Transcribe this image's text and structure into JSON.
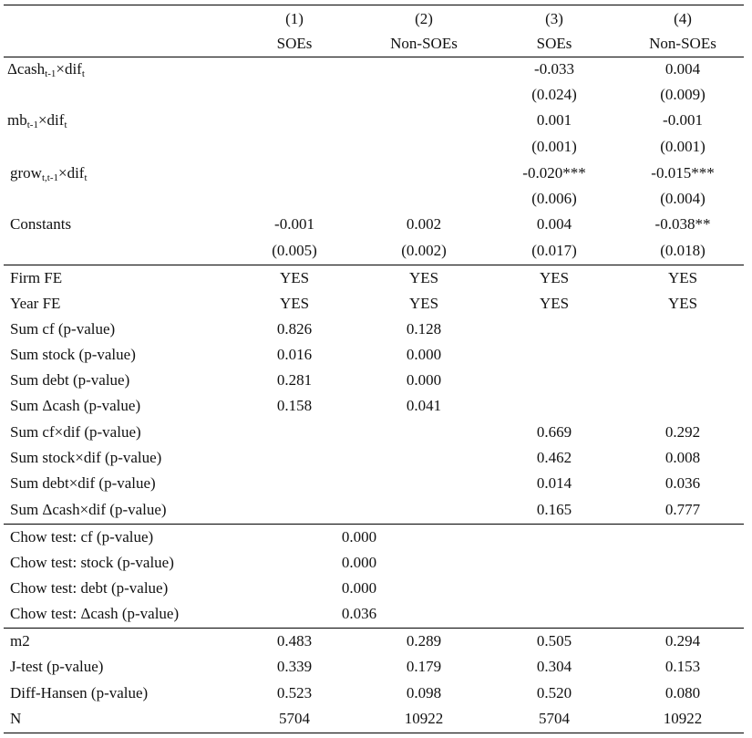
{
  "header": {
    "numbers": [
      "(1)",
      "(2)",
      "(3)",
      "(4)"
    ],
    "groups": [
      "SOEs",
      "Non-SOEs",
      "SOEs",
      "Non-SOEs"
    ]
  },
  "interactions": [
    {
      "prefix": "Δcash",
      "sub": "t-1",
      "suffix": "×dif",
      "suffix_sub": "t",
      "coef": [
        "",
        "",
        "-0.033",
        "0.004"
      ],
      "se": [
        "",
        "",
        "(0.024)",
        "(0.009)"
      ]
    },
    {
      "prefix": "mb",
      "sub": "t-1",
      "suffix": "×dif",
      "suffix_sub": "t",
      "coef": [
        "",
        "",
        "0.001",
        "-0.001"
      ],
      "se": [
        "",
        "",
        "(0.001)",
        "(0.001)"
      ]
    },
    {
      "prefix": "grow",
      "sub": "t,t-1",
      "suffix": "×dif",
      "suffix_sub": "t",
      "coef": [
        "",
        "",
        "-0.020***",
        "-0.015***"
      ],
      "se": [
        "",
        "",
        "(0.006)",
        "(0.004)"
      ]
    }
  ],
  "constants": {
    "label": "Constants",
    "coef": [
      "-0.001",
      "0.002",
      "0.004",
      "-0.038**"
    ],
    "se": [
      "(0.005)",
      "(0.002)",
      "(0.017)",
      "(0.018)"
    ]
  },
  "fe_rows": [
    {
      "label": "Firm FE",
      "values": [
        "YES",
        "YES",
        "YES",
        "YES"
      ]
    },
    {
      "label": "Year FE",
      "values": [
        "YES",
        "YES",
        "YES",
        "YES"
      ]
    }
  ],
  "sum_rows": [
    {
      "label": "Sum cf (p-value)",
      "values": [
        "0.826",
        "0.128",
        "",
        ""
      ]
    },
    {
      "label": "Sum stock (p-value)",
      "values": [
        "0.016",
        "0.000",
        "",
        ""
      ]
    },
    {
      "label": "Sum debt (p-value)",
      "values": [
        "0.281",
        "0.000",
        "",
        ""
      ]
    },
    {
      "label": "Sum Δcash (p-value)",
      "values": [
        "0.158",
        "0.041",
        "",
        ""
      ]
    },
    {
      "label": "Sum cf×dif (p-value)",
      "values": [
        "",
        "",
        "0.669",
        "0.292"
      ]
    },
    {
      "label": "Sum stock×dif (p-value)",
      "values": [
        "",
        "",
        "0.462",
        "0.008"
      ]
    },
    {
      "label": "Sum debt×dif (p-value)",
      "values": [
        "",
        "",
        "0.014",
        "0.036"
      ]
    },
    {
      "label": "Sum Δcash×dif (p-value)",
      "values": [
        "",
        "",
        "0.165",
        "0.777"
      ]
    }
  ],
  "chow_rows": [
    {
      "label": "Chow test: cf (p-value)",
      "value": "0.000"
    },
    {
      "label": "Chow test: stock (p-value)",
      "value": "0.000"
    },
    {
      "label": "Chow test: debt (p-value)",
      "value": "0.000"
    },
    {
      "label": "Chow test: Δcash (p-value)",
      "value": "0.036"
    }
  ],
  "diag_rows": [
    {
      "label": "m2",
      "values": [
        "0.483",
        "0.289",
        "0.505",
        "0.294"
      ]
    },
    {
      "label": "J-test (p-value)",
      "values": [
        "0.339",
        "0.179",
        "0.304",
        "0.153"
      ]
    },
    {
      "label": "Diff-Hansen (p-value)",
      "values": [
        "0.523",
        "0.098",
        "0.520",
        "0.080"
      ]
    },
    {
      "label": "N",
      "values": [
        "5704",
        "10922",
        "5704",
        "10922"
      ]
    }
  ]
}
